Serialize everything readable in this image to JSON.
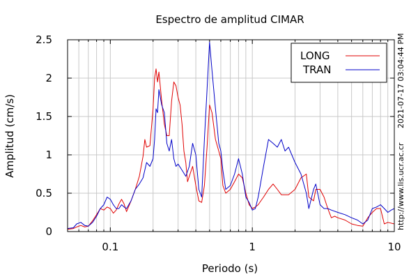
{
  "chart_data": {
    "type": "line",
    "title": "Espectro de amplitud CIMAR",
    "xlabel": "Periodo (s)",
    "ylabel": "Amplitud (cm/s)",
    "xscale": "log",
    "xlim": [
      0.05,
      10
    ],
    "ylim": [
      0,
      2.5
    ],
    "xticks": [
      {
        "value": 0.1,
        "label": "0.1"
      },
      {
        "value": 1,
        "label": "1"
      },
      {
        "value": 10,
        "label": "10"
      }
    ],
    "yticks": [
      {
        "value": 0,
        "label": "0"
      },
      {
        "value": 0.5,
        "label": "0.5"
      },
      {
        "value": 1,
        "label": "1"
      },
      {
        "value": 1.5,
        "label": "1.5"
      },
      {
        "value": 2,
        "label": "2"
      },
      {
        "value": 2.5,
        "label": "2.5"
      }
    ],
    "grid": true,
    "legend_position": "top-right",
    "timestamp": "2021-07-17 03:04:44 PM",
    "source": "http://www.lis.ucr.ac.cr",
    "series": [
      {
        "name": "LONG",
        "color": "#e00000",
        "points": [
          [
            0.05,
            0.03
          ],
          [
            0.055,
            0.04
          ],
          [
            0.058,
            0.06
          ],
          [
            0.062,
            0.08
          ],
          [
            0.066,
            0.06
          ],
          [
            0.07,
            0.07
          ],
          [
            0.075,
            0.14
          ],
          [
            0.08,
            0.22
          ],
          [
            0.085,
            0.3
          ],
          [
            0.09,
            0.28
          ],
          [
            0.095,
            0.32
          ],
          [
            0.1,
            0.3
          ],
          [
            0.105,
            0.24
          ],
          [
            0.11,
            0.28
          ],
          [
            0.115,
            0.36
          ],
          [
            0.12,
            0.42
          ],
          [
            0.125,
            0.36
          ],
          [
            0.13,
            0.26
          ],
          [
            0.14,
            0.4
          ],
          [
            0.15,
            0.55
          ],
          [
            0.16,
            0.72
          ],
          [
            0.17,
            0.98
          ],
          [
            0.175,
            1.2
          ],
          [
            0.18,
            1.1
          ],
          [
            0.19,
            1.12
          ],
          [
            0.2,
            1.6
          ],
          [
            0.205,
            2.0
          ],
          [
            0.21,
            2.12
          ],
          [
            0.215,
            1.95
          ],
          [
            0.22,
            2.08
          ],
          [
            0.23,
            1.7
          ],
          [
            0.24,
            1.4
          ],
          [
            0.25,
            1.25
          ],
          [
            0.26,
            1.25
          ],
          [
            0.27,
            1.7
          ],
          [
            0.28,
            1.95
          ],
          [
            0.29,
            1.9
          ],
          [
            0.3,
            1.75
          ],
          [
            0.31,
            1.65
          ],
          [
            0.32,
            1.4
          ],
          [
            0.33,
            1.05
          ],
          [
            0.34,
            0.9
          ],
          [
            0.35,
            0.65
          ],
          [
            0.36,
            0.72
          ],
          [
            0.38,
            0.85
          ],
          [
            0.4,
            0.6
          ],
          [
            0.42,
            0.4
          ],
          [
            0.44,
            0.38
          ],
          [
            0.46,
            0.6
          ],
          [
            0.48,
            1.1
          ],
          [
            0.5,
            1.65
          ],
          [
            0.52,
            1.55
          ],
          [
            0.55,
            1.2
          ],
          [
            0.58,
            1.05
          ],
          [
            0.6,
            0.95
          ],
          [
            0.62,
            0.6
          ],
          [
            0.65,
            0.5
          ],
          [
            0.7,
            0.55
          ],
          [
            0.75,
            0.65
          ],
          [
            0.8,
            0.75
          ],
          [
            0.85,
            0.7
          ],
          [
            0.9,
            0.5
          ],
          [
            0.95,
            0.35
          ],
          [
            1.0,
            0.3
          ],
          [
            1.05,
            0.32
          ],
          [
            1.1,
            0.35
          ],
          [
            1.2,
            0.45
          ],
          [
            1.3,
            0.55
          ],
          [
            1.4,
            0.62
          ],
          [
            1.5,
            0.55
          ],
          [
            1.6,
            0.48
          ],
          [
            1.8,
            0.48
          ],
          [
            2.0,
            0.55
          ],
          [
            2.2,
            0.7
          ],
          [
            2.4,
            0.75
          ],
          [
            2.5,
            0.45
          ],
          [
            2.7,
            0.4
          ],
          [
            2.8,
            0.55
          ],
          [
            3.0,
            0.55
          ],
          [
            3.2,
            0.45
          ],
          [
            3.4,
            0.3
          ],
          [
            3.6,
            0.18
          ],
          [
            3.8,
            0.2
          ],
          [
            4.0,
            0.18
          ],
          [
            4.5,
            0.15
          ],
          [
            5.0,
            0.1
          ],
          [
            5.5,
            0.08
          ],
          [
            6.0,
            0.07
          ],
          [
            6.5,
            0.18
          ],
          [
            7.0,
            0.25
          ],
          [
            7.5,
            0.3
          ],
          [
            8.0,
            0.3
          ],
          [
            8.5,
            0.1
          ],
          [
            9.0,
            0.12
          ],
          [
            10.0,
            0.1
          ]
        ]
      },
      {
        "name": "TRAN",
        "color": "#0000c8",
        "points": [
          [
            0.05,
            0.04
          ],
          [
            0.055,
            0.05
          ],
          [
            0.058,
            0.1
          ],
          [
            0.062,
            0.12
          ],
          [
            0.066,
            0.08
          ],
          [
            0.07,
            0.07
          ],
          [
            0.075,
            0.12
          ],
          [
            0.08,
            0.2
          ],
          [
            0.085,
            0.3
          ],
          [
            0.09,
            0.35
          ],
          [
            0.095,
            0.45
          ],
          [
            0.1,
            0.42
          ],
          [
            0.105,
            0.35
          ],
          [
            0.11,
            0.3
          ],
          [
            0.115,
            0.3
          ],
          [
            0.12,
            0.35
          ],
          [
            0.125,
            0.32
          ],
          [
            0.13,
            0.3
          ],
          [
            0.14,
            0.4
          ],
          [
            0.15,
            0.55
          ],
          [
            0.16,
            0.62
          ],
          [
            0.17,
            0.7
          ],
          [
            0.18,
            0.9
          ],
          [
            0.19,
            0.85
          ],
          [
            0.2,
            0.95
          ],
          [
            0.205,
            1.2
          ],
          [
            0.21,
            1.6
          ],
          [
            0.215,
            1.55
          ],
          [
            0.22,
            1.85
          ],
          [
            0.23,
            1.65
          ],
          [
            0.24,
            1.55
          ],
          [
            0.25,
            1.15
          ],
          [
            0.26,
            1.05
          ],
          [
            0.27,
            1.2
          ],
          [
            0.28,
            0.95
          ],
          [
            0.29,
            0.85
          ],
          [
            0.3,
            0.88
          ],
          [
            0.32,
            0.8
          ],
          [
            0.34,
            0.72
          ],
          [
            0.36,
            0.85
          ],
          [
            0.38,
            1.15
          ],
          [
            0.4,
            1.0
          ],
          [
            0.42,
            0.55
          ],
          [
            0.44,
            0.45
          ],
          [
            0.46,
            1.2
          ],
          [
            0.48,
            1.85
          ],
          [
            0.5,
            2.47
          ],
          [
            0.52,
            2.1
          ],
          [
            0.55,
            1.6
          ],
          [
            0.58,
            1.15
          ],
          [
            0.6,
            1.05
          ],
          [
            0.62,
            0.8
          ],
          [
            0.65,
            0.55
          ],
          [
            0.7,
            0.6
          ],
          [
            0.75,
            0.75
          ],
          [
            0.8,
            0.95
          ],
          [
            0.85,
            0.75
          ],
          [
            0.9,
            0.45
          ],
          [
            0.95,
            0.38
          ],
          [
            1.0,
            0.28
          ],
          [
            1.05,
            0.3
          ],
          [
            1.1,
            0.45
          ],
          [
            1.2,
            0.85
          ],
          [
            1.3,
            1.2
          ],
          [
            1.4,
            1.15
          ],
          [
            1.5,
            1.1
          ],
          [
            1.6,
            1.2
          ],
          [
            1.7,
            1.05
          ],
          [
            1.8,
            1.1
          ],
          [
            2.0,
            0.9
          ],
          [
            2.2,
            0.75
          ],
          [
            2.4,
            0.5
          ],
          [
            2.5,
            0.3
          ],
          [
            2.7,
            0.55
          ],
          [
            2.8,
            0.62
          ],
          [
            3.0,
            0.35
          ],
          [
            3.2,
            0.3
          ],
          [
            3.4,
            0.3
          ],
          [
            3.6,
            0.28
          ],
          [
            4.0,
            0.25
          ],
          [
            4.5,
            0.22
          ],
          [
            5.0,
            0.18
          ],
          [
            5.5,
            0.15
          ],
          [
            6.0,
            0.1
          ],
          [
            6.5,
            0.15
          ],
          [
            7.0,
            0.3
          ],
          [
            7.5,
            0.32
          ],
          [
            8.0,
            0.35
          ],
          [
            8.5,
            0.3
          ],
          [
            9.0,
            0.25
          ],
          [
            9.5,
            0.28
          ],
          [
            10.0,
            0.3
          ]
        ]
      }
    ]
  }
}
